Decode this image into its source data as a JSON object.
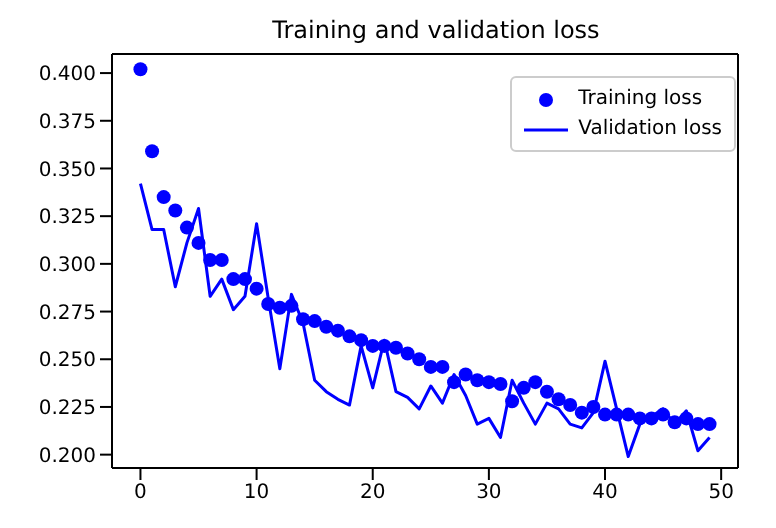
{
  "chart_data": {
    "type": "line",
    "title": "Training and validation loss",
    "x": [
      0,
      1,
      2,
      3,
      4,
      5,
      6,
      7,
      8,
      9,
      10,
      11,
      12,
      13,
      14,
      15,
      16,
      17,
      18,
      19,
      20,
      21,
      22,
      23,
      24,
      25,
      26,
      27,
      28,
      29,
      30,
      31,
      32,
      33,
      34,
      35,
      36,
      37,
      38,
      39,
      40,
      41,
      42,
      43,
      44,
      45,
      46,
      47,
      48,
      49
    ],
    "series": [
      {
        "name": "Training loss",
        "type": "scatter",
        "marker": "circle",
        "color": "#0000ff",
        "values": [
          0.402,
          0.359,
          0.335,
          0.328,
          0.319,
          0.311,
          0.302,
          0.302,
          0.292,
          0.292,
          0.287,
          0.279,
          0.277,
          0.278,
          0.271,
          0.27,
          0.267,
          0.265,
          0.262,
          0.26,
          0.257,
          0.257,
          0.256,
          0.253,
          0.25,
          0.246,
          0.246,
          0.238,
          0.242,
          0.239,
          0.238,
          0.237,
          0.228,
          0.235,
          0.238,
          0.233,
          0.229,
          0.226,
          0.222,
          0.225,
          0.221,
          0.221,
          0.221,
          0.219,
          0.219,
          0.221,
          0.217,
          0.219,
          0.216,
          0.216
        ]
      },
      {
        "name": "Validation loss",
        "line_style": "solid",
        "color": "#0000ff",
        "values": [
          0.342,
          0.318,
          0.318,
          0.288,
          0.311,
          0.329,
          0.283,
          0.292,
          0.276,
          0.283,
          0.321,
          0.282,
          0.245,
          0.284,
          0.269,
          0.239,
          0.233,
          0.229,
          0.226,
          0.257,
          0.235,
          0.26,
          0.233,
          0.23,
          0.224,
          0.236,
          0.227,
          0.242,
          0.231,
          0.216,
          0.219,
          0.209,
          0.239,
          0.227,
          0.216,
          0.227,
          0.224,
          0.216,
          0.214,
          0.222,
          0.249,
          0.224,
          0.199,
          0.216,
          0.22,
          0.224,
          0.216,
          0.223,
          0.202,
          0.209
        ]
      }
    ],
    "xlim": [
      -2.45,
      51.45
    ],
    "xticks": [
      0,
      10,
      20,
      30,
      40,
      50
    ],
    "ylim": [
      0.193,
      0.41
    ],
    "yticks": [
      {
        "value": 0.2,
        "label": "0.200"
      },
      {
        "value": 0.225,
        "label": "0.225"
      },
      {
        "value": 0.25,
        "label": "0.250"
      },
      {
        "value": 0.275,
        "label": "0.275"
      },
      {
        "value": 0.3,
        "label": "0.300"
      },
      {
        "value": 0.325,
        "label": "0.325"
      },
      {
        "value": 0.35,
        "label": "0.350"
      },
      {
        "value": 0.375,
        "label": "0.375"
      },
      {
        "value": 0.4,
        "label": "0.400"
      }
    ],
    "legend": "top right",
    "grid": false
  }
}
